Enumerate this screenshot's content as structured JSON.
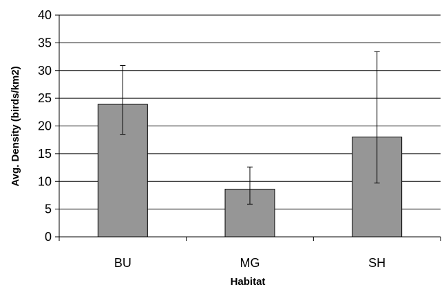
{
  "chart_data": {
    "type": "bar",
    "title": "",
    "xlabel": "Habitat",
    "ylabel": "Avg. Density (birds/km2)",
    "categories": [
      "BU",
      "MG",
      "SH"
    ],
    "values": [
      23.9,
      8.6,
      18.0
    ],
    "error_low": [
      18.5,
      5.9,
      9.7
    ],
    "error_high": [
      30.9,
      12.6,
      33.4
    ],
    "ylim": [
      0,
      40
    ],
    "yticks": [
      0,
      5,
      10,
      15,
      20,
      25,
      30,
      35,
      40
    ],
    "grid": true,
    "legend": "none",
    "colors": {
      "bar": "#969696",
      "outline": "#000000",
      "grid": "#000000"
    }
  }
}
